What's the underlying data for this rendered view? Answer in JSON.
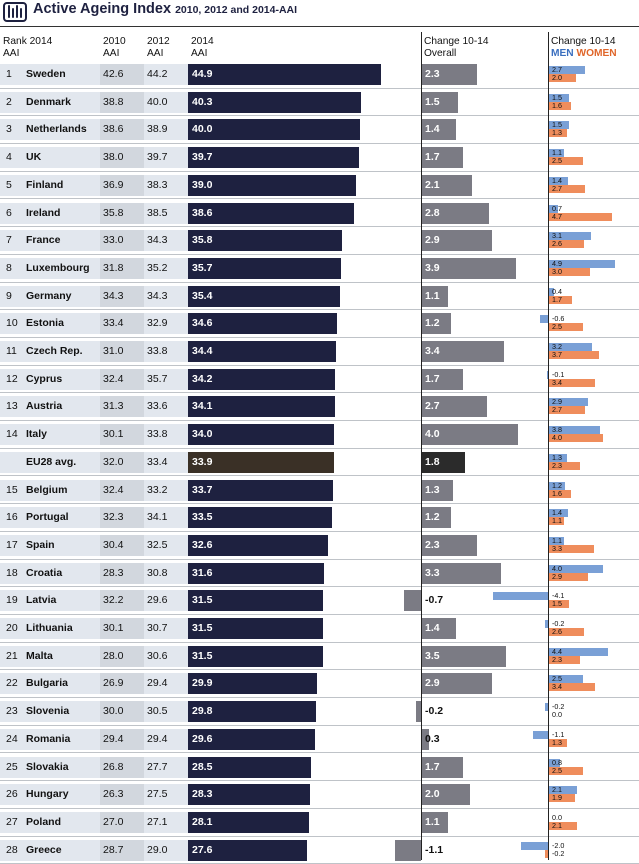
{
  "header": {
    "title": "Active Ageing Index",
    "subtitle": "2010, 2012 and 2014-AAI"
  },
  "columns": {
    "rank_l1": "Rank 2014",
    "rank_l2": "AAI",
    "y2010_l1": "2010",
    "y2010_l2": "AAI",
    "y2012_l1": "2012",
    "y2012_l2": "AAI",
    "y2014_l1": "2014",
    "y2014_l2": "AAI",
    "change_l1": "Change 10-14",
    "change_l2": "Overall",
    "gender_l1": "Change 10-14",
    "men": "MEN",
    "women": "WOMEN"
  },
  "colors": {
    "aai_bar": "#1e2140",
    "overall_bar": "#7b7b84",
    "men": "#7aa0d6",
    "women": "#ef8d5c",
    "eu_aai_bar": "#3a3026",
    "eu_overall_bar": "#2b2b2b"
  },
  "chart_data": {
    "type": "table",
    "rows": [
      {
        "rank": "1",
        "country": "Sweden",
        "aai2010": "42.6",
        "aai2012": "44.2",
        "aai2014": "44.9",
        "overall": "2.3",
        "men": "2.7",
        "women": "2.0"
      },
      {
        "rank": "2",
        "country": "Denmark",
        "aai2010": "38.8",
        "aai2012": "40.0",
        "aai2014": "40.3",
        "overall": "1.5",
        "men": "1.5",
        "women": "1.6"
      },
      {
        "rank": "3",
        "country": "Netherlands",
        "aai2010": "38.6",
        "aai2012": "38.9",
        "aai2014": "40.0",
        "overall": "1.4",
        "men": "1.5",
        "women": "1.3"
      },
      {
        "rank": "4",
        "country": "UK",
        "aai2010": "38.0",
        "aai2012": "39.7",
        "aai2014": "39.7",
        "overall": "1.7",
        "men": "1.1",
        "women": "2.5"
      },
      {
        "rank": "5",
        "country": "Finland",
        "aai2010": "36.9",
        "aai2012": "38.3",
        "aai2014": "39.0",
        "overall": "2.1",
        "men": "1.4",
        "women": "2.7"
      },
      {
        "rank": "6",
        "country": "Ireland",
        "aai2010": "35.8",
        "aai2012": "38.5",
        "aai2014": "38.6",
        "overall": "2.8",
        "men": "0.7",
        "women": "4.7"
      },
      {
        "rank": "7",
        "country": "France",
        "aai2010": "33.0",
        "aai2012": "34.3",
        "aai2014": "35.8",
        "overall": "2.9",
        "men": "3.1",
        "women": "2.6"
      },
      {
        "rank": "8",
        "country": "Luxembourg",
        "aai2010": "31.8",
        "aai2012": "35.2",
        "aai2014": "35.7",
        "overall": "3.9",
        "men": "4.9",
        "women": "3.0"
      },
      {
        "rank": "9",
        "country": "Germany",
        "aai2010": "34.3",
        "aai2012": "34.3",
        "aai2014": "35.4",
        "overall": "1.1",
        "men": "0.4",
        "women": "1.7"
      },
      {
        "rank": "10",
        "country": "Estonia",
        "aai2010": "33.4",
        "aai2012": "32.9",
        "aai2014": "34.6",
        "overall": "1.2",
        "men": "-0.6",
        "women": "2.5"
      },
      {
        "rank": "11",
        "country": "Czech Rep.",
        "aai2010": "31.0",
        "aai2012": "33.8",
        "aai2014": "34.4",
        "overall": "3.4",
        "men": "3.2",
        "women": "3.7"
      },
      {
        "rank": "12",
        "country": "Cyprus",
        "aai2010": "32.4",
        "aai2012": "35.7",
        "aai2014": "34.2",
        "overall": "1.7",
        "men": "-0.1",
        "women": "3.4"
      },
      {
        "rank": "13",
        "country": "Austria",
        "aai2010": "31.3",
        "aai2012": "33.6",
        "aai2014": "34.1",
        "overall": "2.7",
        "men": "2.9",
        "women": "2.7"
      },
      {
        "rank": "14",
        "country": "Italy",
        "aai2010": "30.1",
        "aai2012": "33.8",
        "aai2014": "34.0",
        "overall": "4.0",
        "men": "3.8",
        "women": "4.0"
      },
      {
        "rank": "",
        "country": "EU28 avg.",
        "aai2010": "32.0",
        "aai2012": "33.4",
        "aai2014": "33.9",
        "overall": "1.8",
        "men": "1.3",
        "women": "2.3",
        "eu": true
      },
      {
        "rank": "15",
        "country": "Belgium",
        "aai2010": "32.4",
        "aai2012": "33.2",
        "aai2014": "33.7",
        "overall": "1.3",
        "men": "1.2",
        "women": "1.6"
      },
      {
        "rank": "16",
        "country": "Portugal",
        "aai2010": "32.3",
        "aai2012": "34.1",
        "aai2014": "33.5",
        "overall": "1.2",
        "men": "1.4",
        "women": "1.1"
      },
      {
        "rank": "17",
        "country": "Spain",
        "aai2010": "30.4",
        "aai2012": "32.5",
        "aai2014": "32.6",
        "overall": "2.3",
        "men": "1.1",
        "women": "3.3"
      },
      {
        "rank": "18",
        "country": "Croatia",
        "aai2010": "28.3",
        "aai2012": "30.8",
        "aai2014": "31.6",
        "overall": "3.3",
        "men": "4.0",
        "women": "2.9"
      },
      {
        "rank": "19",
        "country": "Latvia",
        "aai2010": "32.2",
        "aai2012": "29.6",
        "aai2014": "31.5",
        "overall": "-0.7",
        "men": "-4.1",
        "women": "1.5"
      },
      {
        "rank": "20",
        "country": "Lithuania",
        "aai2010": "30.1",
        "aai2012": "30.7",
        "aai2014": "31.5",
        "overall": "1.4",
        "men": "-0.2",
        "women": "2.6"
      },
      {
        "rank": "21",
        "country": "Malta",
        "aai2010": "28.0",
        "aai2012": "30.6",
        "aai2014": "31.5",
        "overall": "3.5",
        "men": "4.4",
        "women": "2.3"
      },
      {
        "rank": "22",
        "country": "Bulgaria",
        "aai2010": "26.9",
        "aai2012": "29.4",
        "aai2014": "29.9",
        "overall": "2.9",
        "men": "2.5",
        "women": "3.4"
      },
      {
        "rank": "23",
        "country": "Slovenia",
        "aai2010": "30.0",
        "aai2012": "30.5",
        "aai2014": "29.8",
        "overall": "-0.2",
        "men": "-0.2",
        "women": "0.0"
      },
      {
        "rank": "24",
        "country": "Romania",
        "aai2010": "29.4",
        "aai2012": "29.4",
        "aai2014": "29.6",
        "overall": "0.3",
        "men": "-1.1",
        "women": "1.3"
      },
      {
        "rank": "25",
        "country": "Slovakia",
        "aai2010": "26.8",
        "aai2012": "27.7",
        "aai2014": "28.5",
        "overall": "1.7",
        "men": "0.8",
        "women": "2.5"
      },
      {
        "rank": "26",
        "country": "Hungary",
        "aai2010": "26.3",
        "aai2012": "27.5",
        "aai2014": "28.3",
        "overall": "2.0",
        "men": "2.1",
        "women": "1.9"
      },
      {
        "rank": "27",
        "country": "Poland",
        "aai2010": "27.0",
        "aai2012": "27.1",
        "aai2014": "28.1",
        "overall": "1.1",
        "men": "0.0",
        "women": "2.1"
      },
      {
        "rank": "28",
        "country": "Greece",
        "aai2010": "28.7",
        "aai2012": "29.0",
        "aai2014": "27.6",
        "overall": "-1.1",
        "men": "-2.0",
        "women": "-0.2"
      }
    ]
  }
}
